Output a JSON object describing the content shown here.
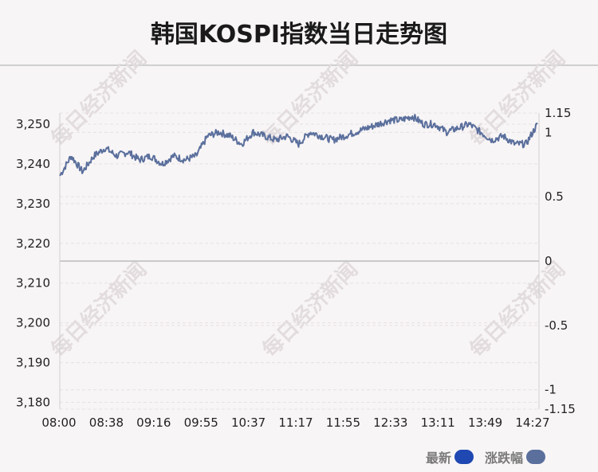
{
  "title": "韩国KOSPI指数当日走势图",
  "watermark": "每日经济新闻",
  "colors": {
    "line": "#5a6f9c",
    "latest_swatch": "#1f48b3",
    "change_swatch": "#5a6f9c",
    "grid": "#e6e2e4",
    "zero_line": "#c9c9c9"
  },
  "legend": {
    "latest": "最新",
    "change": "涨跌幅"
  },
  "chart_data": {
    "type": "line",
    "title": "韩国KOSPI指数当日走势图",
    "x_ticks": [
      "08:00",
      "08:38",
      "09:16",
      "09:55",
      "10:37",
      "11:17",
      "11:55",
      "12:33",
      "13:11",
      "13:49",
      "14:27"
    ],
    "y_left_ticks": [
      "3,250",
      "3,240",
      "3,230",
      "3,220",
      "3,210",
      "3,200",
      "3,190",
      "3,180"
    ],
    "y_left_values": [
      3250,
      3240,
      3230,
      3220,
      3210,
      3200,
      3190,
      3180
    ],
    "y_right_ticks": [
      "1.15",
      "1",
      "0.5",
      "0",
      "-0.5",
      "-1",
      "-1.15"
    ],
    "y_right_values": [
      1.15,
      1,
      0.5,
      0,
      -0.5,
      -1,
      -1.15
    ],
    "ylim_left": [
      3178.3,
      3252.8
    ],
    "ylim_right": [
      -1.15,
      1.15
    ],
    "grid": true,
    "legend_position": "bottom-right",
    "series": [
      {
        "name": "最新",
        "values": [
          3237,
          3242,
          3238,
          3242,
          3244,
          3242,
          3243,
          3241,
          3242,
          3240,
          3242,
          3241,
          3242,
          3247,
          3248,
          3247,
          3245,
          3248,
          3247,
          3246,
          3247,
          3245,
          3248,
          3247,
          3246,
          3247,
          3248,
          3249,
          3250,
          3251,
          3251,
          3252,
          3250,
          3250,
          3248,
          3249,
          3250,
          3248,
          3246,
          3247,
          3245,
          3245,
          3250
        ]
      }
    ]
  }
}
